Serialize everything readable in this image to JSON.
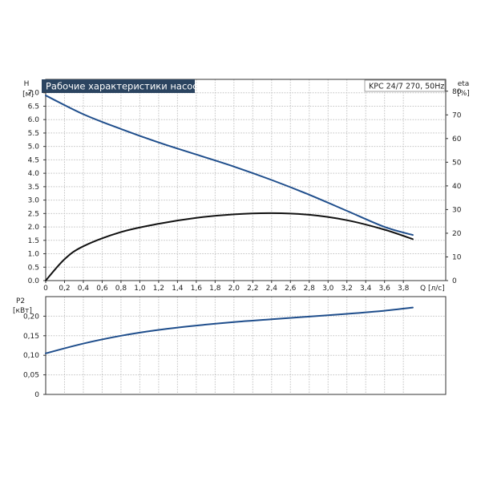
{
  "chart_data": [
    {
      "type": "line",
      "title": "Рабочие характеристики насоса",
      "model_label": "KPC 24/7 270, 50Hz",
      "xlabel": "Q [л/с]",
      "ylabel_left": [
        "H",
        "[м]"
      ],
      "ylabel_right": [
        "eta",
        "[%]"
      ],
      "xlim": [
        0,
        4.25
      ],
      "ylim_left": [
        0,
        7.5
      ],
      "ylim_right": [
        0,
        85
      ],
      "x_ticks": [
        "0",
        "0,2",
        "0,4",
        "0,6",
        "0,8",
        "1,0",
        "1,2",
        "1,4",
        "1,6",
        "1,8",
        "2,0",
        "2,2",
        "2,4",
        "2,6",
        "2,8",
        "3,0",
        "3,2",
        "3,4",
        "3,6",
        "3,8"
      ],
      "y_ticks_left": [
        "0.0",
        "0.5",
        "1.0",
        "1.5",
        "2.0",
        "2.5",
        "3.0",
        "3.5",
        "4.0",
        "4.5",
        "5.0",
        "5.5",
        "6.0",
        "6.5",
        "7.0"
      ],
      "y_ticks_right": [
        "0",
        "10",
        "20",
        "30",
        "40",
        "50",
        "60",
        "70",
        "80"
      ],
      "grid": true,
      "series": [
        {
          "axis": "left",
          "color": "#1f4e8c",
          "x": [
            0,
            0.4,
            0.8,
            1.2,
            1.6,
            2.0,
            2.4,
            2.8,
            3.2,
            3.6,
            3.9
          ],
          "values": [
            6.9,
            6.2,
            5.65,
            5.15,
            4.7,
            4.25,
            3.75,
            3.2,
            2.6,
            2.0,
            1.7
          ]
        },
        {
          "axis": "right",
          "color": "#111111",
          "x": [
            0,
            0.2,
            0.4,
            0.8,
            1.2,
            1.6,
            2.0,
            2.4,
            2.8,
            3.2,
            3.6,
            3.9
          ],
          "values": [
            0,
            9,
            14.5,
            20.5,
            24,
            26.5,
            28,
            28.5,
            27.8,
            25.5,
            21.5,
            17.5
          ]
        }
      ]
    },
    {
      "type": "line",
      "ylabel": [
        "P2",
        "[кВт]"
      ],
      "xlim": [
        0,
        4.25
      ],
      "ylim": [
        0,
        0.25
      ],
      "y_ticks": [
        "0",
        "0,05",
        "0,10",
        "0,15",
        "0,20"
      ],
      "grid": true,
      "series": [
        {
          "color": "#1f4e8c",
          "x": [
            0,
            0.4,
            0.8,
            1.2,
            1.6,
            2.0,
            2.4,
            2.8,
            3.2,
            3.6,
            3.9
          ],
          "values": [
            0.105,
            0.13,
            0.15,
            0.165,
            0.176,
            0.185,
            0.192,
            0.199,
            0.206,
            0.214,
            0.222
          ]
        }
      ]
    }
  ]
}
